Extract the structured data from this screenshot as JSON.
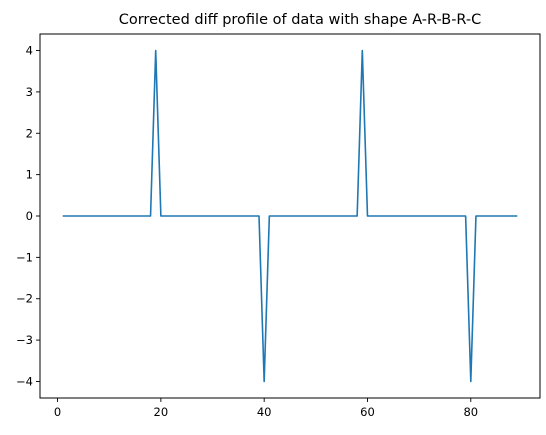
{
  "chart_data": {
    "type": "line",
    "title": "Corrected diff profile of data with shape A-R-B-R-C",
    "xlabel": "",
    "ylabel": "",
    "xlim": [
      -3.4,
      93.4
    ],
    "ylim": [
      -4.4,
      4.4
    ],
    "xticks": [
      0,
      20,
      40,
      60,
      80
    ],
    "xtick_labels": [
      "0",
      "20",
      "40",
      "60",
      "80"
    ],
    "yticks": [
      -4,
      -3,
      -2,
      -1,
      0,
      1,
      2,
      3,
      4
    ],
    "ytick_labels": [
      "−4",
      "−3",
      "−2",
      "−1",
      "0",
      "1",
      "2",
      "3",
      "4"
    ],
    "grid": false,
    "legend": "none",
    "series": [
      {
        "color": "#1f77b4",
        "x": [
          1,
          18,
          19,
          20,
          39,
          40,
          41,
          58,
          59,
          60,
          79,
          80,
          81,
          89
        ],
        "y": [
          0,
          0,
          4,
          0,
          0,
          -4,
          0,
          0,
          4,
          0,
          0,
          -4,
          0,
          0
        ]
      }
    ]
  }
}
